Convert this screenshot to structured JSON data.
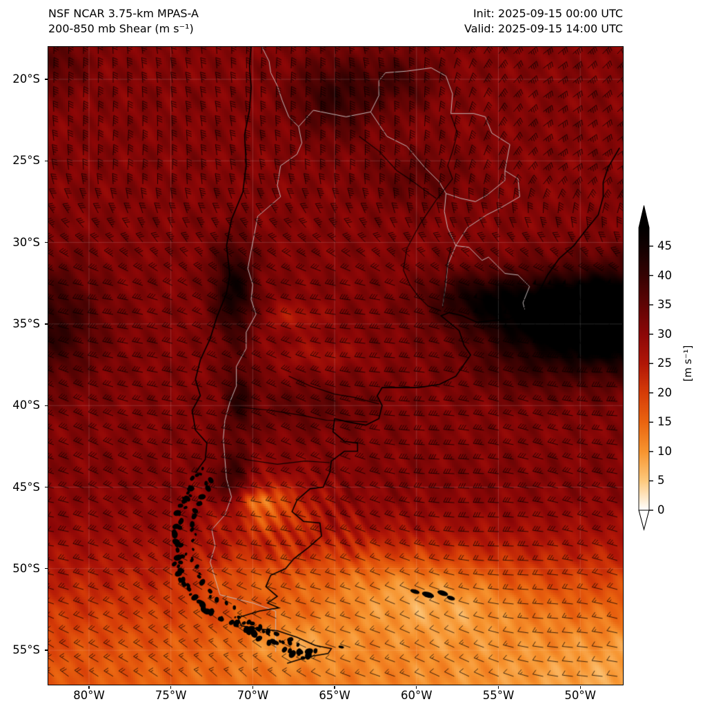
{
  "titles": {
    "left_line1": "NSF NCAR 3.75-km MPAS-A",
    "left_line2": "200-850 mb Shear (m s⁻¹)",
    "init": "Init: 2025-09-15 00:00 UTC",
    "valid": "Valid: 2025-09-15 14:00 UTC"
  },
  "axes": {
    "x_ticks": [
      {
        "label": "80°W",
        "lon": -80
      },
      {
        "label": "75°W",
        "lon": -75
      },
      {
        "label": "70°W",
        "lon": -70
      },
      {
        "label": "65°W",
        "lon": -65
      },
      {
        "label": "60°W",
        "lon": -60
      },
      {
        "label": "55°W",
        "lon": -55
      },
      {
        "label": "50°W",
        "lon": -50
      }
    ],
    "y_ticks": [
      {
        "label": "20°S",
        "lat": 20
      },
      {
        "label": "25°S",
        "lat": 25
      },
      {
        "label": "30°S",
        "lat": 30
      },
      {
        "label": "35°S",
        "lat": 35
      },
      {
        "label": "40°S",
        "lat": 40
      },
      {
        "label": "45°S",
        "lat": 45
      },
      {
        "label": "50°S",
        "lat": 50
      },
      {
        "label": "55°S",
        "lat": 55
      }
    ]
  },
  "colorbar": {
    "label": "[m s⁻¹]",
    "ticks": [
      {
        "label": "0",
        "value": 0
      },
      {
        "label": "5",
        "value": 5
      },
      {
        "label": "10",
        "value": 10
      },
      {
        "label": "15",
        "value": 15
      },
      {
        "label": "20",
        "value": 20
      },
      {
        "label": "25",
        "value": 25
      },
      {
        "label": "30",
        "value": 30
      },
      {
        "label": "35",
        "value": 35
      },
      {
        "label": "40",
        "value": 40
      },
      {
        "label": "45",
        "value": 45
      }
    ],
    "max_value": 48.2,
    "colormap": [
      {
        "value": 0,
        "color": "#ffffff"
      },
      {
        "value": 5,
        "color": "#fdc87c"
      },
      {
        "value": 10,
        "color": "#f7942f"
      },
      {
        "value": 15,
        "color": "#ea6410"
      },
      {
        "value": 20,
        "color": "#d63c08"
      },
      {
        "value": 25,
        "color": "#b01607"
      },
      {
        "value": 30,
        "color": "#8c0707"
      },
      {
        "value": 35,
        "color": "#5f0404"
      },
      {
        "value": 40,
        "color": "#350202"
      },
      {
        "value": 45,
        "color": "#110101"
      },
      {
        "value": 48.2,
        "color": "#000000"
      }
    ]
  },
  "map_style": {
    "spine_color": "#000000",
    "coast_color": "#000000",
    "border_color": "#c4baba",
    "graticule_color": "rgba(255,255,255,0.16)",
    "barb_color": "rgba(0,0,0,0.85)"
  }
}
